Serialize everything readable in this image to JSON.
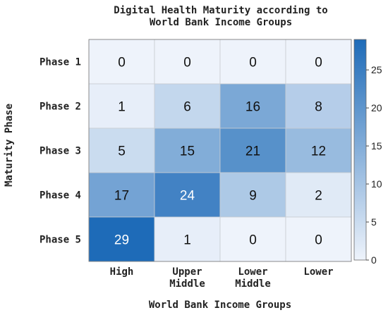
{
  "chart_data": {
    "type": "heatmap",
    "title_lines": [
      "Digital Health Maturity according to",
      "World Bank Income Groups"
    ],
    "xlabel": "World Bank Income Groups",
    "ylabel": "Maturity Phase",
    "x_categories": [
      [
        "High"
      ],
      [
        "Upper",
        "Middle"
      ],
      [
        "Lower",
        "Middle"
      ],
      [
        "Lower"
      ]
    ],
    "y_categories": [
      "Phase 1",
      "Phase 2",
      "Phase 3",
      "Phase 4",
      "Phase 5"
    ],
    "values": [
      [
        0,
        0,
        0,
        0
      ],
      [
        1,
        6,
        16,
        8
      ],
      [
        5,
        15,
        21,
        12
      ],
      [
        17,
        24,
        9,
        2
      ],
      [
        29,
        1,
        0,
        0
      ]
    ],
    "colorbar": {
      "min": 0,
      "max": 29,
      "ticks": [
        0,
        5,
        10,
        15,
        20,
        25
      ]
    },
    "colormap": {
      "low": "#eef3fb",
      "high": "#1e6bb8"
    }
  }
}
